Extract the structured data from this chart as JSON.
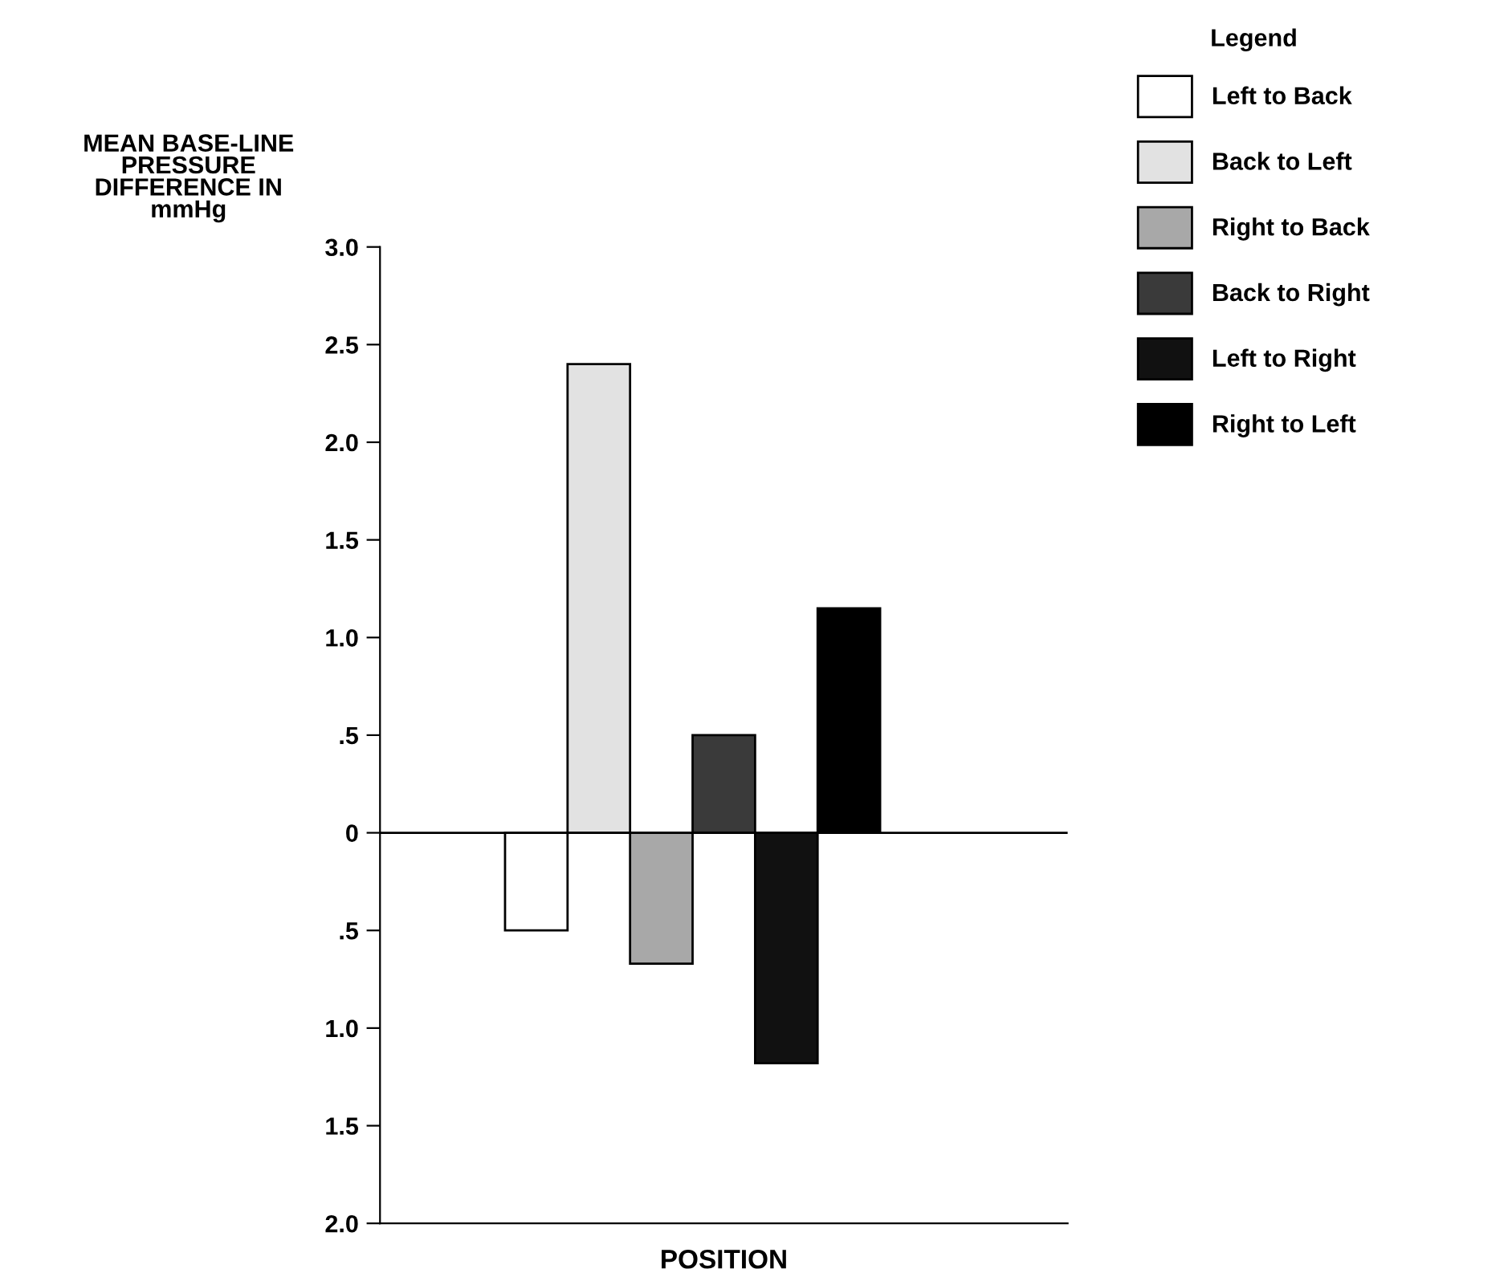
{
  "chart_data": {
    "type": "bar",
    "ylabel": "MEAN BASE-LINE\nPRESSURE\nDIFFERENCE IN\nmmHg",
    "xlabel": "POSITION",
    "legend_title": "Legend",
    "categories": [
      null,
      null,
      null,
      null,
      null,
      null,
      null,
      null,
      null,
      null,
      null
    ],
    "series": [
      {
        "name": "Left to Back",
        "color": "#ffffff",
        "values": [
          null,
          null,
          -0.5,
          null,
          null,
          null,
          null,
          null,
          null,
          null,
          null
        ]
      },
      {
        "name": "Back to Left",
        "color": "#e2e2e2",
        "values": [
          null,
          null,
          null,
          2.4,
          null,
          null,
          null,
          null,
          null,
          null,
          null
        ]
      },
      {
        "name": "Right to Back",
        "color": "#a8a8a8",
        "values": [
          null,
          null,
          null,
          null,
          -0.67,
          null,
          null,
          null,
          null,
          null,
          null
        ]
      },
      {
        "name": "Back to Right",
        "color": "#3a3a3a",
        "values": [
          null,
          null,
          null,
          null,
          null,
          0.5,
          null,
          null,
          null,
          null,
          null
        ]
      },
      {
        "name": "Left to Right",
        "color": "#111111",
        "values": [
          null,
          null,
          null,
          null,
          null,
          null,
          -1.18,
          null,
          null,
          null,
          null
        ]
      },
      {
        "name": "Right to Left",
        "color": "#000000",
        "values": [
          null,
          null,
          null,
          null,
          null,
          null,
          null,
          1.15,
          null,
          null,
          null
        ]
      }
    ],
    "ylim": [
      -2.0,
      3.0
    ],
    "yticks": [
      {
        "value": 3.0,
        "label": "3.0"
      },
      {
        "value": 2.5,
        "label": "2.5"
      },
      {
        "value": 2.0,
        "label": "2.0"
      },
      {
        "value": 1.5,
        "label": "1.5"
      },
      {
        "value": 1.0,
        "label": "1.0"
      },
      {
        "value": 0.5,
        "label": ".5"
      },
      0,
      {
        "value": -0.5,
        "label": ".5"
      },
      {
        "value": -1.0,
        "label": "1.0"
      },
      {
        "value": -1.5,
        "label": "1.5"
      },
      {
        "value": -2.0,
        "label": "2.0"
      }
    ],
    "ref_lines": [
      {
        "axis": "y",
        "value": 0
      }
    ],
    "legend": "right",
    "grid": false
  }
}
